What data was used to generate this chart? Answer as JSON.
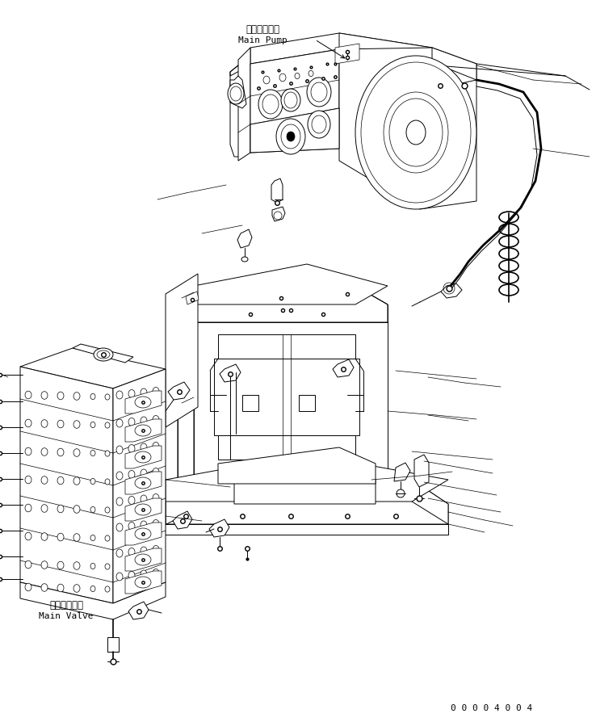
{
  "bg_color": "#ffffff",
  "line_color": "#000000",
  "fig_width": 7.38,
  "fig_height": 8.95,
  "dpi": 100,
  "label_main_pump_jp": "メインポンプ",
  "label_main_pump_en": "Main Pump",
  "label_main_valve_jp": "メインバルブ",
  "label_main_valve_en": "Main Valve",
  "part_number": "0 0 0 0 4 0 0 4",
  "font_size_label": 8.5,
  "font_size_part": 8
}
